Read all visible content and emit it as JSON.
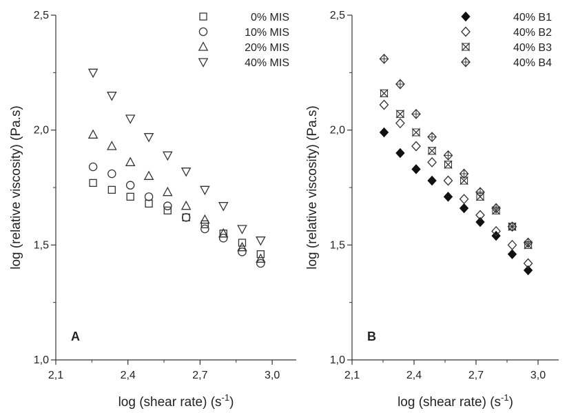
{
  "chart_data": [
    {
      "type": "scatter",
      "panel_label": "A",
      "xlabel": "log (shear rate) (s",
      "xlabel_sup": "-1",
      "xlabel_tail": ")",
      "ylabel": "log (relative viscosity) (Pa.s)",
      "xlim": [
        2.1,
        3.1
      ],
      "ylim": [
        1.0,
        2.5
      ],
      "xticks": [
        2.1,
        2.4,
        2.7,
        3.0
      ],
      "xtick_labels": [
        "2,1",
        "2,4",
        "2,7",
        "3,0"
      ],
      "yticks": [
        1.0,
        1.5,
        2.0,
        2.5
      ],
      "ytick_labels": [
        "1,0",
        "1,5",
        "2,0",
        "2,5"
      ],
      "grid": false,
      "legend_position": "top-right",
      "series": [
        {
          "name": "0% MIS",
          "marker": "square-open",
          "x": [
            2.255,
            2.333,
            2.41,
            2.487,
            2.565,
            2.642,
            2.72,
            2.797,
            2.875,
            2.952
          ],
          "y": [
            1.77,
            1.74,
            1.71,
            1.68,
            1.65,
            1.62,
            1.59,
            1.55,
            1.51,
            1.46
          ]
        },
        {
          "name": "10% MIS",
          "marker": "circle-open",
          "x": [
            2.255,
            2.333,
            2.41,
            2.487,
            2.565,
            2.642,
            2.72,
            2.797,
            2.875,
            2.952
          ],
          "y": [
            1.84,
            1.81,
            1.76,
            1.71,
            1.67,
            1.62,
            1.57,
            1.53,
            1.47,
            1.42
          ]
        },
        {
          "name": "20% MIS",
          "marker": "triangle-up-open",
          "x": [
            2.255,
            2.333,
            2.41,
            2.487,
            2.565,
            2.642,
            2.72,
            2.797,
            2.875,
            2.952
          ],
          "y": [
            1.98,
            1.93,
            1.86,
            1.8,
            1.73,
            1.67,
            1.61,
            1.55,
            1.49,
            1.44
          ]
        },
        {
          "name": "40% MIS",
          "marker": "triangle-down-open",
          "x": [
            2.255,
            2.333,
            2.41,
            2.487,
            2.565,
            2.642,
            2.72,
            2.797,
            2.875,
            2.952
          ],
          "y": [
            2.25,
            2.15,
            2.05,
            1.97,
            1.89,
            1.82,
            1.74,
            1.67,
            1.57,
            1.52
          ]
        }
      ]
    },
    {
      "type": "scatter",
      "panel_label": "B",
      "xlabel": "log (shear rate) (s",
      "xlabel_sup": "-1",
      "xlabel_tail": ")",
      "ylabel": "log (relative viscosity) (Pa.s)",
      "xlim": [
        2.1,
        3.1
      ],
      "ylim": [
        1.0,
        2.5
      ],
      "xticks": [
        2.1,
        2.4,
        2.7,
        3.0
      ],
      "xtick_labels": [
        "2,1",
        "2,4",
        "2,7",
        "3,0"
      ],
      "yticks": [
        1.0,
        1.5,
        2.0,
        2.5
      ],
      "ytick_labels": [
        "1,0",
        "1,5",
        "2,0",
        "2,5"
      ],
      "grid": false,
      "legend_position": "top-right",
      "series": [
        {
          "name": "40% B1",
          "marker": "diamond-filled",
          "x": [
            2.255,
            2.333,
            2.41,
            2.487,
            2.565,
            2.642,
            2.72,
            2.797,
            2.875,
            2.952
          ],
          "y": [
            1.99,
            1.9,
            1.83,
            1.78,
            1.71,
            1.66,
            1.6,
            1.54,
            1.46,
            1.39
          ]
        },
        {
          "name": "40% B2",
          "marker": "diamond-open",
          "x": [
            2.255,
            2.333,
            2.41,
            2.487,
            2.565,
            2.642,
            2.72,
            2.797,
            2.875,
            2.952
          ],
          "y": [
            2.11,
            2.03,
            1.93,
            1.86,
            1.78,
            1.7,
            1.63,
            1.56,
            1.5,
            1.42
          ]
        },
        {
          "name": "40% B3",
          "marker": "hourglass-x",
          "x": [
            2.255,
            2.333,
            2.41,
            2.487,
            2.565,
            2.642,
            2.72,
            2.797,
            2.875,
            2.952
          ],
          "y": [
            2.16,
            2.07,
            1.99,
            1.91,
            1.85,
            1.78,
            1.71,
            1.65,
            1.58,
            1.5
          ]
        },
        {
          "name": "40% B4",
          "marker": "diamond-plus",
          "x": [
            2.255,
            2.333,
            2.41,
            2.487,
            2.565,
            2.642,
            2.72,
            2.797,
            2.875,
            2.952
          ],
          "y": [
            2.31,
            2.2,
            2.07,
            1.97,
            1.89,
            1.81,
            1.73,
            1.66,
            1.58,
            1.51
          ]
        }
      ]
    }
  ]
}
